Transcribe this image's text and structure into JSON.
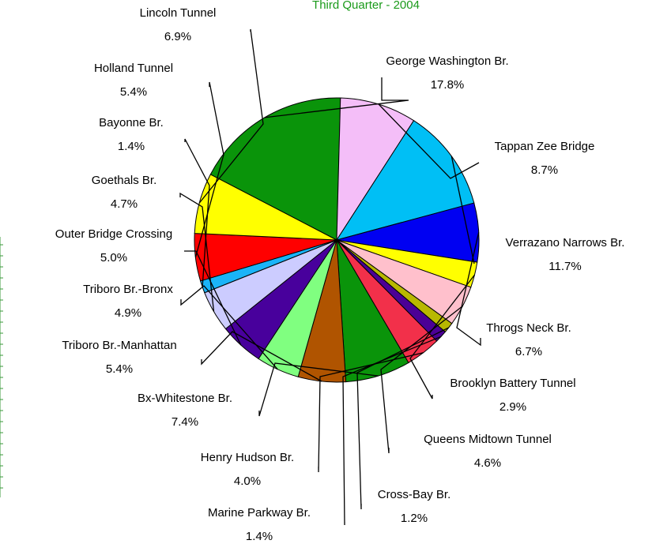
{
  "chart_data": {
    "type": "pie",
    "subtitle": "Third Quarter - 2004",
    "slices": [
      {
        "label": "George Washington Br.",
        "value": 17.8,
        "pct_text": "17.8%",
        "color": "#0a940a"
      },
      {
        "label": "Tappan Zee Bridge",
        "value": 8.7,
        "pct_text": "8.7%",
        "color": "#f4bef8"
      },
      {
        "label": "Verrazano Narrows Br.",
        "value": 11.7,
        "pct_text": "11.7%",
        "color": "#00bff5"
      },
      {
        "label": "Throgs Neck Br.",
        "value": 6.7,
        "pct_text": "6.7%",
        "color": "#0000f2"
      },
      {
        "label": "Brooklyn Battery Tunnel",
        "value": 2.9,
        "pct_text": "2.9%",
        "color": "#ffff00"
      },
      {
        "label": "Queens Midtown Tunnel",
        "value": 4.6,
        "pct_text": "4.6%",
        "color": "#ffc0cc"
      },
      {
        "label": "Cross-Bay Br.",
        "value": 1.2,
        "pct_text": "1.2%",
        "color": "#b8b800"
      },
      {
        "label": "Marine Parkway Br.",
        "value": 1.4,
        "pct_text": "1.4%",
        "color": "#4b0096"
      },
      {
        "label": "Henry Hudson Br.",
        "value": 4.0,
        "pct_text": "4.0%",
        "color": "#f2304a"
      },
      {
        "label": "Bx-Whitestone Br.",
        "value": 7.4,
        "pct_text": "7.4%",
        "color": "#0a940a"
      },
      {
        "label": "Triboro Br.-Manhattan",
        "value": 5.4,
        "pct_text": "5.4%",
        "color": "#b05400"
      },
      {
        "label": "Triboro Br.-Bronx",
        "value": 4.9,
        "pct_text": "4.9%",
        "color": "#80ff80"
      },
      {
        "label": "Outer Bridge Crossing",
        "value": 5.0,
        "pct_text": "5.0%",
        "color": "#48009c"
      },
      {
        "label": "Goethals Br.",
        "value": 4.7,
        "pct_text": "4.7%",
        "color": "#ccccff"
      },
      {
        "label": "Bayonne Br.",
        "value": 1.4,
        "pct_text": "1.4%",
        "color": "#1ab4f8"
      },
      {
        "label": "Holland Tunnel",
        "value": 5.4,
        "pct_text": "5.4%",
        "color": "#ff0000"
      },
      {
        "label": "Lincoln Tunnel",
        "value": 6.9,
        "pct_text": "6.9%",
        "color": "#ffff00"
      }
    ]
  }
}
